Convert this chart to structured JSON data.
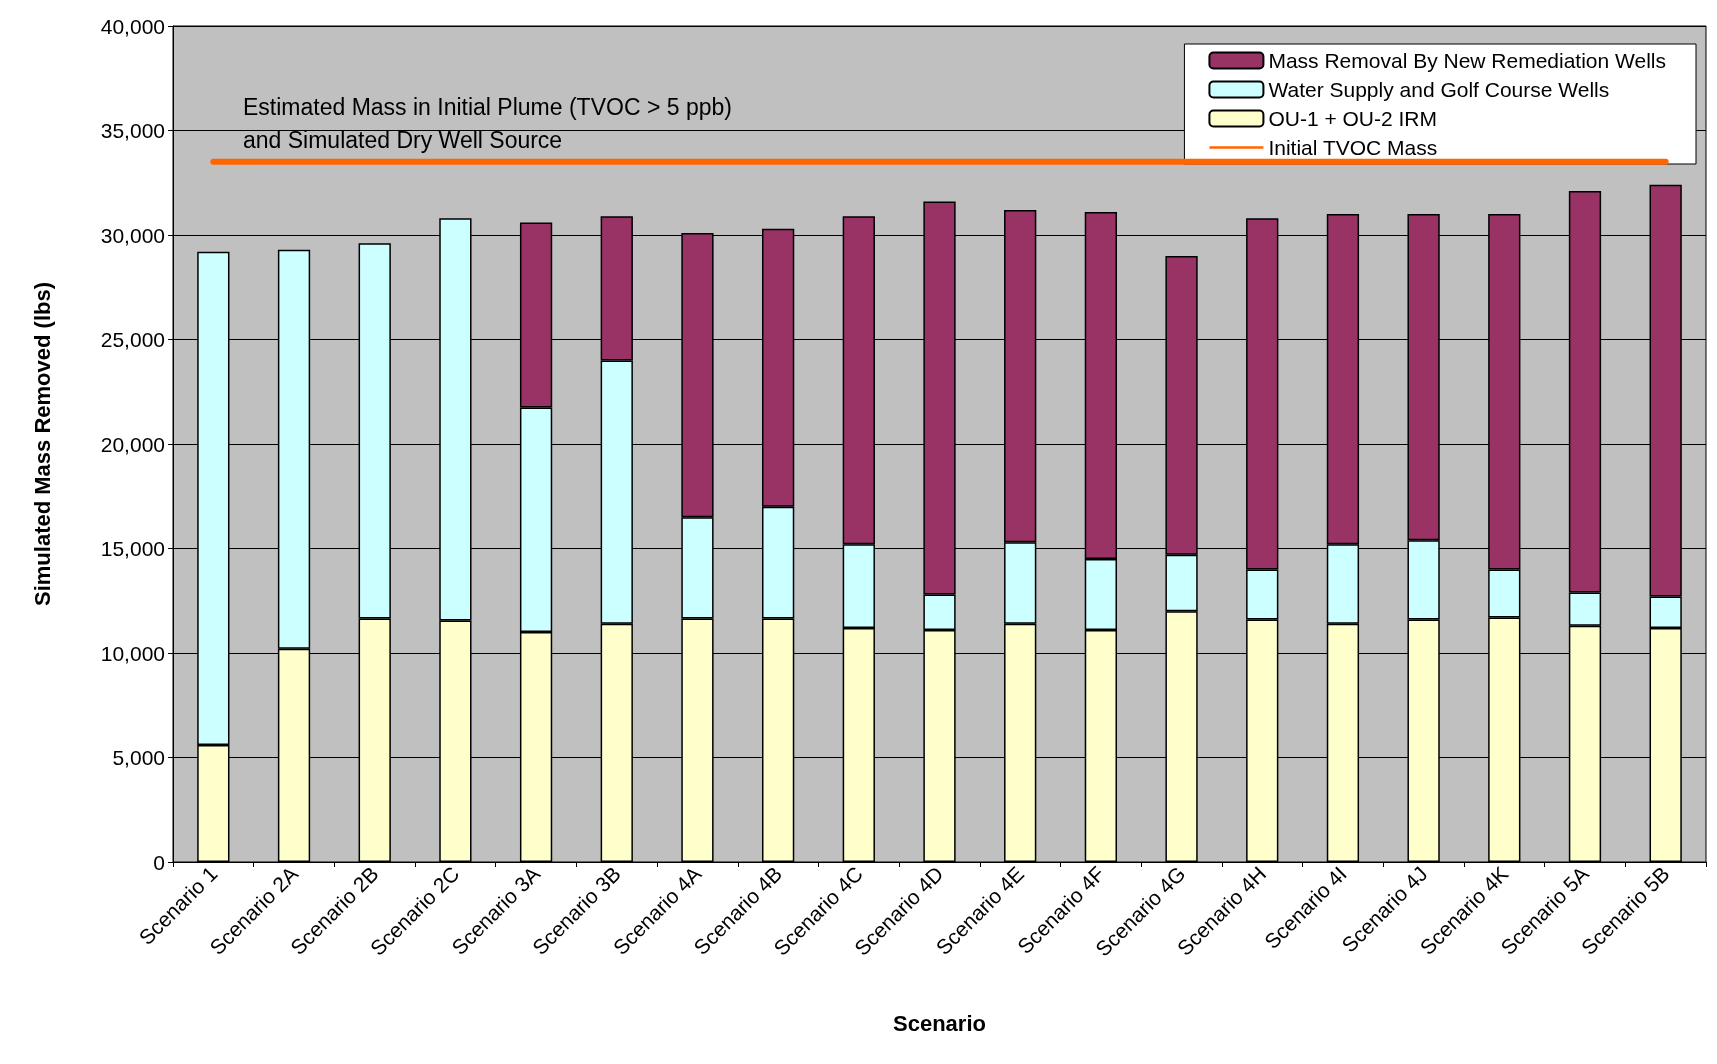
{
  "chart_data": {
    "type": "bar",
    "stacked": true,
    "xlabel": "Scenario",
    "ylabel": "Simulated Mass Removed (lbs)",
    "categories": [
      "Scenario 1",
      "Scenario 2A",
      "Scenario 2B",
      "Scenario 2C",
      "Scenario 3A",
      "Scenario 3B",
      "Scenario 4A",
      "Scenario 4B",
      "Scenario 4C",
      "Scenario 4D",
      "Scenario 4E",
      "Scenario 4F",
      "Scenario 4G",
      "Scenario 4H",
      "Scenario 4I",
      "Scenario 4J",
      "Scenario 4K",
      "Scenario 5A",
      "Scenario 5B"
    ],
    "series": [
      {
        "name": "OU-1 + OU-2 IRM",
        "color": "#ffffcc",
        "values": [
          5600,
          10200,
          11650,
          11550,
          11000,
          11400,
          11650,
          11650,
          11200,
          11100,
          11400,
          11100,
          12000,
          11600,
          11400,
          11600,
          11700,
          11300,
          11200
        ]
      },
      {
        "name": "Water Supply and Golf Course Wells",
        "color": "#ccffff",
        "values": [
          23600,
          19100,
          17950,
          19250,
          10750,
          12600,
          4850,
          5350,
          4000,
          1700,
          3900,
          3400,
          2700,
          2400,
          3800,
          3800,
          2300,
          1600,
          1500
        ]
      },
      {
        "name": "Mass Removal By New Remediation Wells",
        "color": "#993366",
        "values": [
          null,
          null,
          null,
          null,
          8850,
          6900,
          13600,
          13300,
          15700,
          18800,
          15900,
          16600,
          14300,
          16800,
          15800,
          15600,
          17000,
          19200,
          19700
        ]
      },
      {
        "name": "Initial TVOC Mass",
        "type": "line",
        "color": "#ff6600",
        "values": [
          33500,
          33500,
          33500,
          33500,
          33500,
          33500,
          33500,
          33500,
          33500,
          33500,
          33500,
          33500,
          33500,
          33500,
          33500,
          33500,
          33500,
          33500,
          33500
        ]
      }
    ],
    "ylim": [
      0,
      40000
    ],
    "yticks": [
      {
        "value": 0,
        "label": "0"
      },
      {
        "value": 5000,
        "label": "5,000"
      },
      {
        "value": 10000,
        "label": "10,000"
      },
      {
        "value": 15000,
        "label": "15,000"
      },
      {
        "value": 20000,
        "label": "20,000"
      },
      {
        "value": 25000,
        "label": "25,000"
      },
      {
        "value": 30000,
        "label": "30,000"
      },
      {
        "value": 35000,
        "label": "35,000"
      },
      {
        "value": 40000,
        "label": "40,000"
      }
    ],
    "grid": "y",
    "legend": "top right",
    "marker": "none",
    "annotations": [
      "Estimated Mass in Initial Plume (TVOC > 5 ppb)\nand Simulated Dry Well Source"
    ]
  }
}
